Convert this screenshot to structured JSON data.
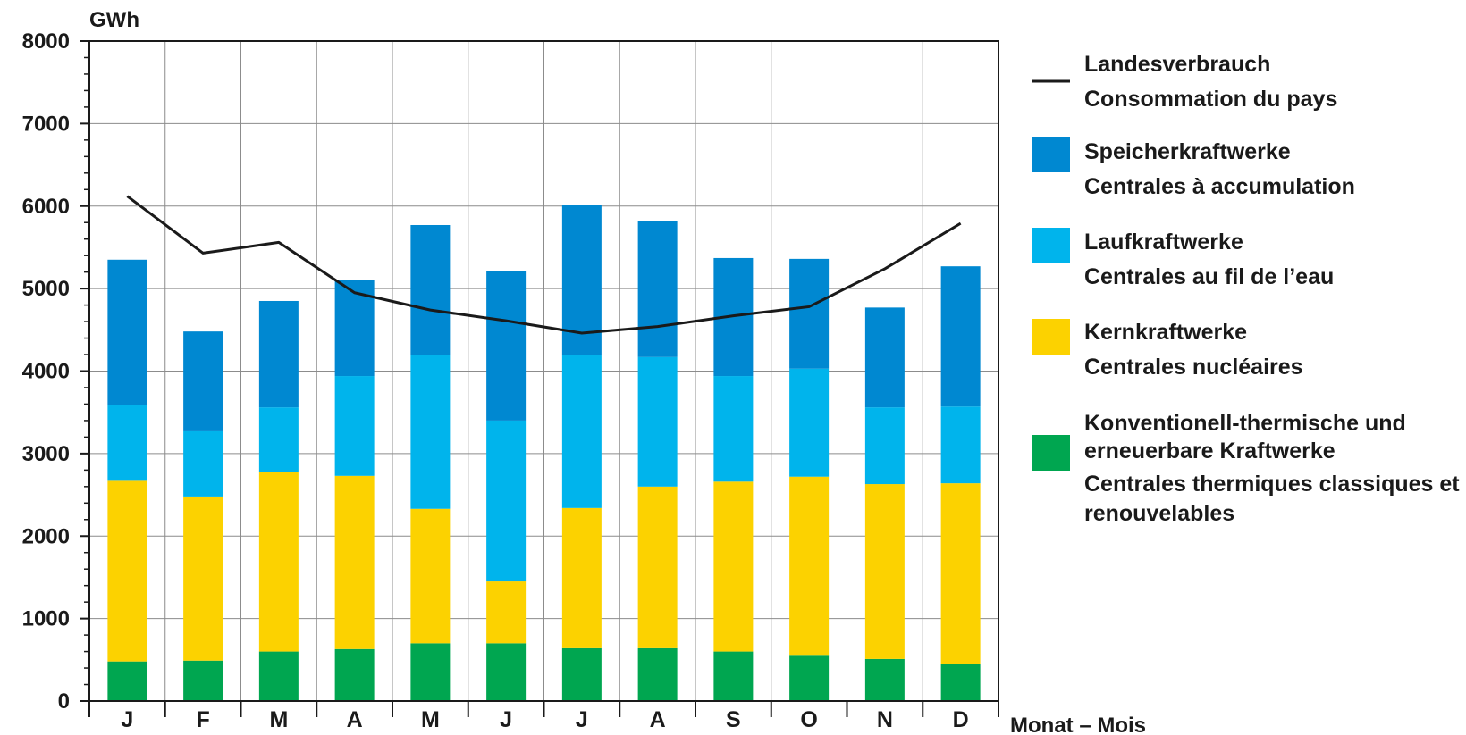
{
  "chart_data": {
    "type": "bar",
    "stacked": true,
    "ylabel": "GWh",
    "xlabel": "Monat – Mois",
    "ylim": [
      0,
      8000
    ],
    "yticks": [
      0,
      1000,
      2000,
      3000,
      4000,
      5000,
      6000,
      7000,
      8000
    ],
    "grid": true,
    "legend_position": "right",
    "categories": [
      "J",
      "F",
      "M",
      "A",
      "M",
      "J",
      "J",
      "A",
      "S",
      "O",
      "N",
      "D"
    ],
    "series": [
      {
        "name_lines": [
          "Konventionell-thermische und",
          "erneuerbare Kraftwerke",
          "Centrales thermiques classiques et",
          "renouvelables"
        ],
        "color": "#00a650",
        "values": [
          480,
          490,
          600,
          630,
          700,
          700,
          640,
          640,
          600,
          560,
          510,
          450
        ]
      },
      {
        "name_lines": [
          "Kernkraftwerke",
          "Centrales nucléaires"
        ],
        "color": "#fcd200",
        "values": [
          2190,
          1990,
          2180,
          2100,
          1630,
          750,
          1700,
          1960,
          2060,
          2160,
          2120,
          2190
        ]
      },
      {
        "name_lines": [
          "Laufkraftwerke",
          "Centrales au fil de l’eau"
        ],
        "color": "#00b4ec",
        "values": [
          920,
          790,
          780,
          1210,
          1870,
          1950,
          1860,
          1570,
          1280,
          1310,
          930,
          930
        ]
      },
      {
        "name_lines": [
          "Speicherkraftwerke",
          "Centrales à accumulation"
        ],
        "color": "#0088d1",
        "values": [
          1760,
          1210,
          1290,
          1160,
          1570,
          1810,
          1810,
          1650,
          1430,
          1330,
          1210,
          1700
        ]
      }
    ],
    "line_series": {
      "name_lines": [
        "Landesverbrauch",
        "Consommation du pays"
      ],
      "color": "#1a1a1a",
      "values": [
        6120,
        5430,
        5560,
        4950,
        4740,
        4610,
        4460,
        4540,
        4670,
        4780,
        5240,
        5790
      ]
    }
  }
}
